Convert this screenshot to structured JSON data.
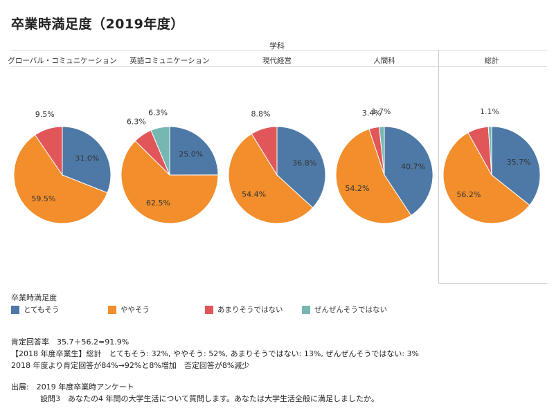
{
  "title": "卒業時満足度（2019年度）",
  "header": {
    "group_label": "学科"
  },
  "legend": {
    "title": "卒業時満足度",
    "items": [
      {
        "label": "とてもそう",
        "color": "#4e79a7"
      },
      {
        "label": "ややそう",
        "color": "#f28e2b"
      },
      {
        "label": "あまりそうではない",
        "color": "#e15759"
      },
      {
        "label": "ぜんぜんそうではない",
        "color": "#76b7b2"
      }
    ]
  },
  "chart_data": {
    "type": "pie",
    "title": "卒業時満足度（2019年度）",
    "categories": [
      "とてもそう",
      "ややそう",
      "あまりそうではない",
      "ぜんぜんそうではない"
    ],
    "colors": [
      "#4e79a7",
      "#f28e2b",
      "#e15759",
      "#76b7b2"
    ],
    "pies": [
      {
        "name": "グローバル・コミュニケーション",
        "values": [
          31.0,
          59.5,
          9.5,
          0
        ],
        "labels": [
          "31.0%",
          "59.5%",
          "9.5%",
          ""
        ]
      },
      {
        "name": "英語コミュニケーション",
        "values": [
          25.0,
          62.5,
          6.3,
          6.3
        ],
        "labels": [
          "25.0%",
          "62.5%",
          "6.3%",
          "6.3%"
        ]
      },
      {
        "name": "現代経営",
        "values": [
          36.8,
          54.4,
          8.8,
          0
        ],
        "labels": [
          "36.8%",
          "54.4%",
          "8.8%",
          ""
        ]
      },
      {
        "name": "人間科",
        "values": [
          40.7,
          54.2,
          3.4,
          1.7
        ],
        "labels": [
          "40.7%",
          "54.2%",
          "3.4%",
          "1.7%"
        ]
      },
      {
        "name": "総計",
        "values": [
          35.7,
          56.2,
          7.0,
          1.1
        ],
        "labels": [
          "35.7%",
          "56.2%",
          "",
          "1.1%"
        ]
      }
    ]
  },
  "notes": {
    "line1": "肯定回答率　35.7＋56.2=91.9%",
    "line2": "【2018 年度卒業生】総計　とてもそう: 32%,  ややそう: 52%,  あまりそうではない: 13%,  ぜんぜんそうではない: 3%",
    "line3": "2018 年度より肯定回答が84%→92%と8%増加　否定回答が8%減少",
    "source_label": "出展:　2019 年度卒業時アンケート",
    "source_detail": "設問3　あなたの4 年間の大学生活について質問します。あなたは大学生活全般に満足しましたか。"
  }
}
